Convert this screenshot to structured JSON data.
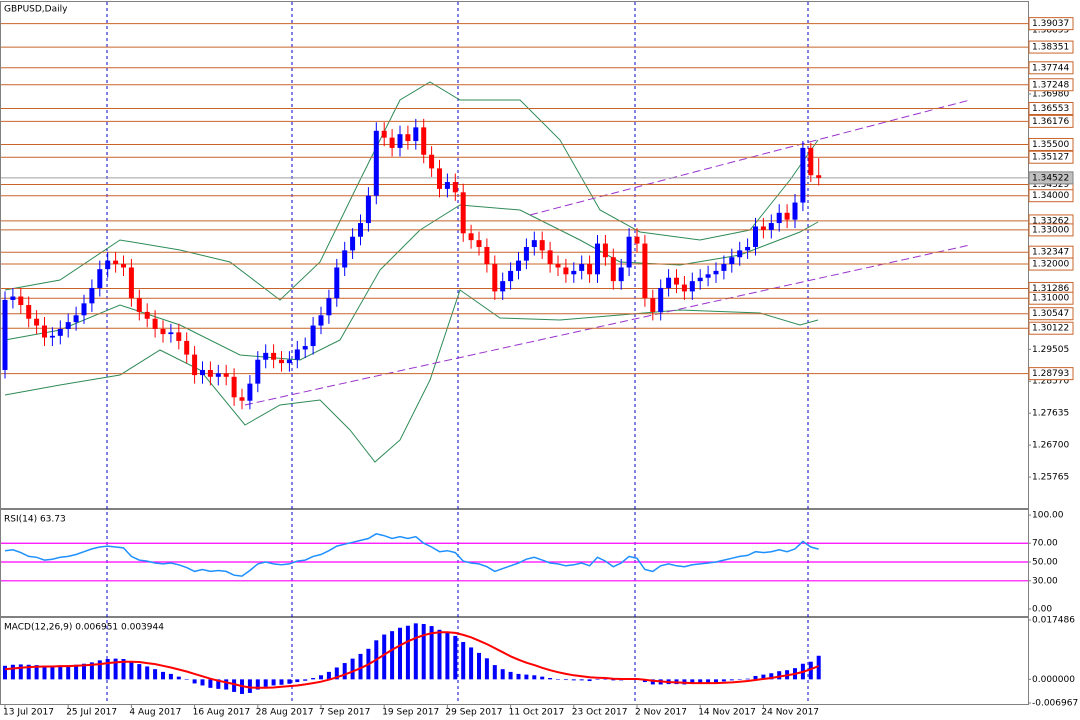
{
  "chart_data": [
    {
      "type": "candlestick",
      "title": "GBPUSD,Daily",
      "categories": [
        "13 Jul 2017",
        null,
        null,
        null,
        null,
        null,
        null,
        null,
        "25 Jul 2017",
        null,
        null,
        null,
        null,
        null,
        null,
        null,
        "4 Aug 2017",
        null,
        null,
        null,
        null,
        null,
        null,
        null,
        "16 Aug 2017",
        null,
        null,
        null,
        null,
        null,
        null,
        null,
        "28 Aug 2017",
        null,
        null,
        null,
        null,
        null,
        null,
        null,
        "7 Sep 2017",
        null,
        null,
        null,
        null,
        null,
        null,
        null,
        "19 Sep 2017",
        null,
        null,
        null,
        null,
        null,
        null,
        null,
        "29 Sep 2017",
        null,
        null,
        null,
        null,
        null,
        null,
        null,
        "11 Oct 2017",
        null,
        null,
        null,
        null,
        null,
        null,
        null,
        "23 Oct 2017",
        null,
        null,
        null,
        null,
        null,
        null,
        null,
        "2 Nov 2017",
        null,
        null,
        null,
        null,
        null,
        null,
        null,
        "14 Nov 2017",
        null,
        null,
        null,
        null,
        null,
        null,
        null,
        "24 Nov 2017",
        null,
        null,
        null,
        null,
        null,
        null,
        null
      ],
      "open": [
        1.289,
        1.3095,
        1.3105,
        1.308,
        1.304,
        1.302,
        1.2985,
        1.299,
        1.301,
        1.303,
        1.305,
        1.3085,
        1.313,
        1.3185,
        1.321,
        1.32,
        1.319,
        1.31,
        1.306,
        1.304,
        1.301,
        1.2995,
        1.3,
        1.2975,
        1.2935,
        1.2875,
        1.289,
        1.287,
        1.288,
        1.287,
        1.281,
        1.28,
        1.285,
        1.292,
        1.294,
        1.292,
        1.291,
        1.292,
        1.295,
        1.296,
        1.302,
        1.305,
        1.31,
        1.319,
        1.324,
        1.328,
        1.332,
        1.34,
        1.359,
        1.357,
        1.354,
        1.358,
        1.356,
        1.36,
        1.352,
        1.348,
        1.342,
        1.344,
        1.341,
        1.329,
        1.327,
        1.325,
        1.32,
        1.312,
        1.315,
        1.318,
        1.321,
        1.325,
        1.327,
        1.324,
        1.32,
        1.319,
        1.317,
        1.318,
        1.32,
        1.317,
        1.326,
        1.322,
        1.315,
        1.319,
        1.328,
        1.326,
        1.31,
        1.306,
        1.313,
        1.316,
        1.314,
        1.312,
        1.315,
        1.316,
        1.317,
        1.318,
        1.32,
        1.322,
        1.324,
        1.325,
        1.331,
        1.33,
        1.332,
        1.335,
        1.333,
        1.338,
        1.354,
        1.346
      ],
      "high": [
        1.312,
        1.313,
        1.313,
        1.3105,
        1.3065,
        1.3045,
        1.3015,
        1.3035,
        1.3055,
        1.3075,
        1.311,
        1.3155,
        1.321,
        1.3235,
        1.3235,
        1.3225,
        1.3215,
        1.3125,
        1.3085,
        1.3065,
        1.3035,
        1.3025,
        1.3025,
        1.3,
        1.296,
        1.2915,
        1.2915,
        1.2905,
        1.2905,
        1.2895,
        1.2835,
        1.2875,
        1.2945,
        1.2965,
        1.2965,
        1.2945,
        1.2945,
        1.2975,
        1.2985,
        1.3045,
        1.3075,
        1.3125,
        1.3215,
        1.3265,
        1.3305,
        1.3345,
        1.3425,
        1.3615,
        1.3615,
        1.3595,
        1.3605,
        1.3605,
        1.3625,
        1.3625,
        1.3545,
        1.3505,
        1.3465,
        1.3465,
        1.3435,
        1.3315,
        1.3295,
        1.3275,
        1.3225,
        1.3175,
        1.3205,
        1.3235,
        1.3275,
        1.3295,
        1.3295,
        1.3265,
        1.3225,
        1.3215,
        1.3205,
        1.3225,
        1.3225,
        1.3285,
        1.3285,
        1.3245,
        1.3215,
        1.3305,
        1.3305,
        1.3285,
        1.3125,
        1.3155,
        1.3185,
        1.3185,
        1.3165,
        1.3175,
        1.3185,
        1.3195,
        1.3205,
        1.3225,
        1.3245,
        1.3265,
        1.3275,
        1.3335,
        1.3335,
        1.3345,
        1.3375,
        1.3375,
        1.3405,
        1.356,
        1.3555,
        1.351
      ],
      "low": [
        1.2865,
        1.307,
        1.3055,
        1.3015,
        1.2995,
        1.296,
        1.296,
        1.2965,
        1.2985,
        1.3005,
        1.3025,
        1.306,
        1.3105,
        1.316,
        1.3175,
        1.3165,
        1.3075,
        1.3035,
        1.3015,
        1.2985,
        1.297,
        1.297,
        1.295,
        1.291,
        1.285,
        1.285,
        1.2845,
        1.2845,
        1.2845,
        1.2785,
        1.2775,
        1.2775,
        1.2825,
        1.2895,
        1.2895,
        1.2885,
        1.2885,
        1.2895,
        1.2925,
        1.2935,
        1.2995,
        1.3025,
        1.3075,
        1.3165,
        1.3215,
        1.3255,
        1.3295,
        1.3375,
        1.3545,
        1.3515,
        1.3515,
        1.3535,
        1.3535,
        1.3495,
        1.3455,
        1.3395,
        1.3395,
        1.3385,
        1.3265,
        1.3245,
        1.3225,
        1.3175,
        1.3095,
        1.3095,
        1.3125,
        1.3155,
        1.3185,
        1.3225,
        1.3215,
        1.3175,
        1.3165,
        1.3145,
        1.3145,
        1.3155,
        1.3145,
        1.3145,
        1.3195,
        1.3125,
        1.3125,
        1.3165,
        1.3235,
        1.3075,
        1.3035,
        1.3035,
        1.3105,
        1.3115,
        1.3095,
        1.3095,
        1.3125,
        1.3135,
        1.3145,
        1.3155,
        1.3175,
        1.3195,
        1.3215,
        1.3225,
        1.3275,
        1.3275,
        1.3295,
        1.3305,
        1.3305,
        1.3355,
        1.344,
        1.343
      ],
      "close": [
        1.3095,
        1.3105,
        1.308,
        1.304,
        1.302,
        1.2985,
        1.299,
        1.301,
        1.303,
        1.305,
        1.3085,
        1.313,
        1.3185,
        1.321,
        1.32,
        1.319,
        1.31,
        1.306,
        1.304,
        1.301,
        1.2995,
        1.3,
        1.2975,
        1.2935,
        1.2875,
        1.289,
        1.287,
        1.288,
        1.287,
        1.281,
        1.28,
        1.285,
        1.292,
        1.294,
        1.292,
        1.291,
        1.292,
        1.295,
        1.296,
        1.302,
        1.305,
        1.31,
        1.319,
        1.324,
        1.328,
        1.332,
        1.34,
        1.359,
        1.357,
        1.354,
        1.358,
        1.356,
        1.36,
        1.352,
        1.348,
        1.342,
        1.344,
        1.341,
        1.329,
        1.327,
        1.325,
        1.32,
        1.312,
        1.315,
        1.318,
        1.321,
        1.325,
        1.327,
        1.324,
        1.32,
        1.319,
        1.317,
        1.318,
        1.32,
        1.317,
        1.326,
        1.322,
        1.315,
        1.319,
        1.328,
        1.326,
        1.31,
        1.306,
        1.313,
        1.316,
        1.314,
        1.312,
        1.315,
        1.316,
        1.317,
        1.318,
        1.32,
        1.322,
        1.324,
        1.325,
        1.331,
        1.33,
        1.332,
        1.335,
        1.333,
        1.338,
        1.354,
        1.346,
        1.34522
      ],
      "up_color": "#0000ff",
      "down_color": "#ff0000",
      "ylim": [
        1.2486,
        1.3967
      ],
      "yticks": [
        1.38855,
        {
          "value": 1.3698,
          "label": "1.36980"
        },
        {
          "value": 1.29505,
          "label": "1.29505"
        },
        {
          "value": 1.2857,
          "label": "1.28570"
        },
        1.27635,
        {
          "value": 1.267,
          "label": "1.26700"
        },
        1.25765
      ],
      "grid": false,
      "levels": [
        1.39037,
        1.38351,
        1.37744,
        1.37248,
        1.36553,
        1.36176,
        {
          "value": 1.355,
          "label": "1.35500"
        },
        1.35127,
        1.34329,
        {
          "value": 1.34,
          "label": "1.34000"
        },
        1.33262,
        {
          "value": 1.33,
          "label": "1.33000"
        },
        1.32347,
        {
          "value": 1.32,
          "label": "1.32000"
        },
        1.31286,
        {
          "value": 1.31,
          "label": "1.31000"
        },
        1.30547,
        1.30122,
        1.28793
      ],
      "level_color": "#c8642a",
      "last_price": 1.34522
    },
    {
      "type": "line",
      "title": "RSI(14) 63.73",
      "color": "#1e90ff",
      "values": [
        62,
        63,
        60,
        56,
        55,
        52,
        53,
        55,
        56,
        58,
        61,
        64,
        66,
        67,
        66,
        65,
        56,
        52,
        51,
        49,
        48,
        49,
        47,
        44,
        40,
        42,
        40,
        41,
        40,
        36,
        35,
        41,
        48,
        50,
        48,
        47,
        48,
        51,
        52,
        56,
        58,
        62,
        67,
        69,
        71,
        73,
        75,
        80,
        78,
        75,
        77,
        75,
        77,
        70,
        66,
        61,
        62,
        60,
        51,
        49,
        48,
        45,
        40,
        43,
        46,
        49,
        53,
        55,
        52,
        49,
        48,
        46,
        47,
        49,
        46,
        55,
        51,
        45,
        49,
        56,
        54,
        42,
        40,
        46,
        48,
        46,
        45,
        47,
        48,
        49,
        50,
        52,
        54,
        56,
        57,
        61,
        60,
        61,
        63,
        61,
        64,
        72,
        66,
        63.73
      ],
      "ylim": [
        -7.5,
        105.4
      ],
      "yticks": [
        {
          "value": 100,
          "label": "100.00"
        },
        {
          "value": 70,
          "label": "70.00"
        },
        {
          "value": 50,
          "label": "50.00"
        },
        {
          "value": 30,
          "label": "30.00"
        },
        {
          "value": 0,
          "label": "0.00"
        }
      ],
      "levels": [
        70,
        50,
        30
      ],
      "level_color": "#ff00ff"
    },
    {
      "type": "macd",
      "title": "MACD(12,26,9) 0.006951 0.003944",
      "series": [
        {
          "name": "MACD",
          "color": "#0000ff",
          "values": [
            0.004,
            0.0043,
            0.0044,
            0.0043,
            0.0042,
            0.004,
            0.004,
            0.004,
            0.0041,
            0.0043,
            0.0046,
            0.005,
            0.0056,
            0.006,
            0.0061,
            0.006,
            0.0052,
            0.0045,
            0.0038,
            0.003,
            0.0022,
            0.0016,
            0.0008,
            0.0,
            -0.0012,
            -0.0018,
            -0.0025,
            -0.0028,
            -0.003,
            -0.0037,
            -0.0043,
            -0.004,
            -0.003,
            -0.0022,
            -0.0018,
            -0.0016,
            -0.0013,
            -0.0008,
            -0.0004,
            0.0004,
            0.0012,
            0.0022,
            0.0035,
            0.0048,
            0.0061,
            0.0075,
            0.009,
            0.0115,
            0.0132,
            0.0142,
            0.0152,
            0.0158,
            0.0165,
            0.0163,
            0.0157,
            0.0146,
            0.0138,
            0.0128,
            0.011,
            0.0094,
            0.0078,
            0.0062,
            0.0042,
            0.003,
            0.0022,
            0.0016,
            0.0014,
            0.0012,
            0.0008,
            0.0004,
            0.0001,
            -0.0002,
            -0.0003,
            -0.0003,
            -0.0005,
            0.0,
            0.0001,
            -0.0003,
            -0.0003,
            0.0002,
            0.0003,
            -0.0008,
            -0.0015,
            -0.0015,
            -0.0014,
            -0.0014,
            -0.0015,
            -0.0013,
            -0.0012,
            -0.0011,
            -0.0009,
            -0.0006,
            -0.0003,
            0.0,
            0.0002,
            0.001,
            0.0014,
            0.0018,
            0.0024,
            0.0027,
            0.0033,
            0.0046,
            0.0052,
            0.006951
          ]
        },
        {
          "name": "Signal",
          "color": "#ff0000",
          "values": [
            0.003,
            0.0032,
            0.0034,
            0.0036,
            0.0037,
            0.0038,
            0.0038,
            0.0039,
            0.0039,
            0.004,
            0.0041,
            0.0043,
            0.0045,
            0.0048,
            0.005,
            0.0052,
            0.0052,
            0.0051,
            0.0048,
            0.0045,
            0.004,
            0.0035,
            0.0029,
            0.0023,
            0.0016,
            0.0009,
            0.0002,
            -0.0004,
            -0.0009,
            -0.0014,
            -0.002,
            -0.0024,
            -0.0025,
            -0.0025,
            -0.0024,
            -0.0022,
            -0.002,
            -0.0018,
            -0.0015,
            -0.0011,
            -0.0007,
            -0.0001,
            0.0006,
            0.0014,
            0.0023,
            0.0033,
            0.0044,
            0.0058,
            0.0073,
            0.0087,
            0.01,
            0.0112,
            0.0122,
            0.013,
            0.0136,
            0.0139,
            0.0139,
            0.0137,
            0.0131,
            0.0124,
            0.0114,
            0.0104,
            0.0092,
            0.008,
            0.0068,
            0.0058,
            0.0049,
            0.0042,
            0.0034,
            0.0027,
            0.0021,
            0.0016,
            0.0012,
            0.0009,
            0.0006,
            0.0005,
            0.0004,
            0.0002,
            0.0001,
            0.0001,
            0.0001,
            -0.0001,
            -0.0004,
            -0.0006,
            -0.0008,
            -0.0009,
            -0.001,
            -0.0011,
            -0.0011,
            -0.0011,
            -0.0011,
            -0.001,
            -0.0009,
            -0.0007,
            -0.0005,
            -0.0002,
            0.0001,
            0.0004,
            0.0008,
            0.0012,
            0.0016,
            0.0022,
            0.003,
            0.003944
          ]
        }
      ],
      "ylim": [
        -0.006967,
        0.017486
      ],
      "yticks": [
        0.017486,
        {
          "value": 0,
          "label": "0.000000"
        },
        -0.006967
      ]
    }
  ]
}
